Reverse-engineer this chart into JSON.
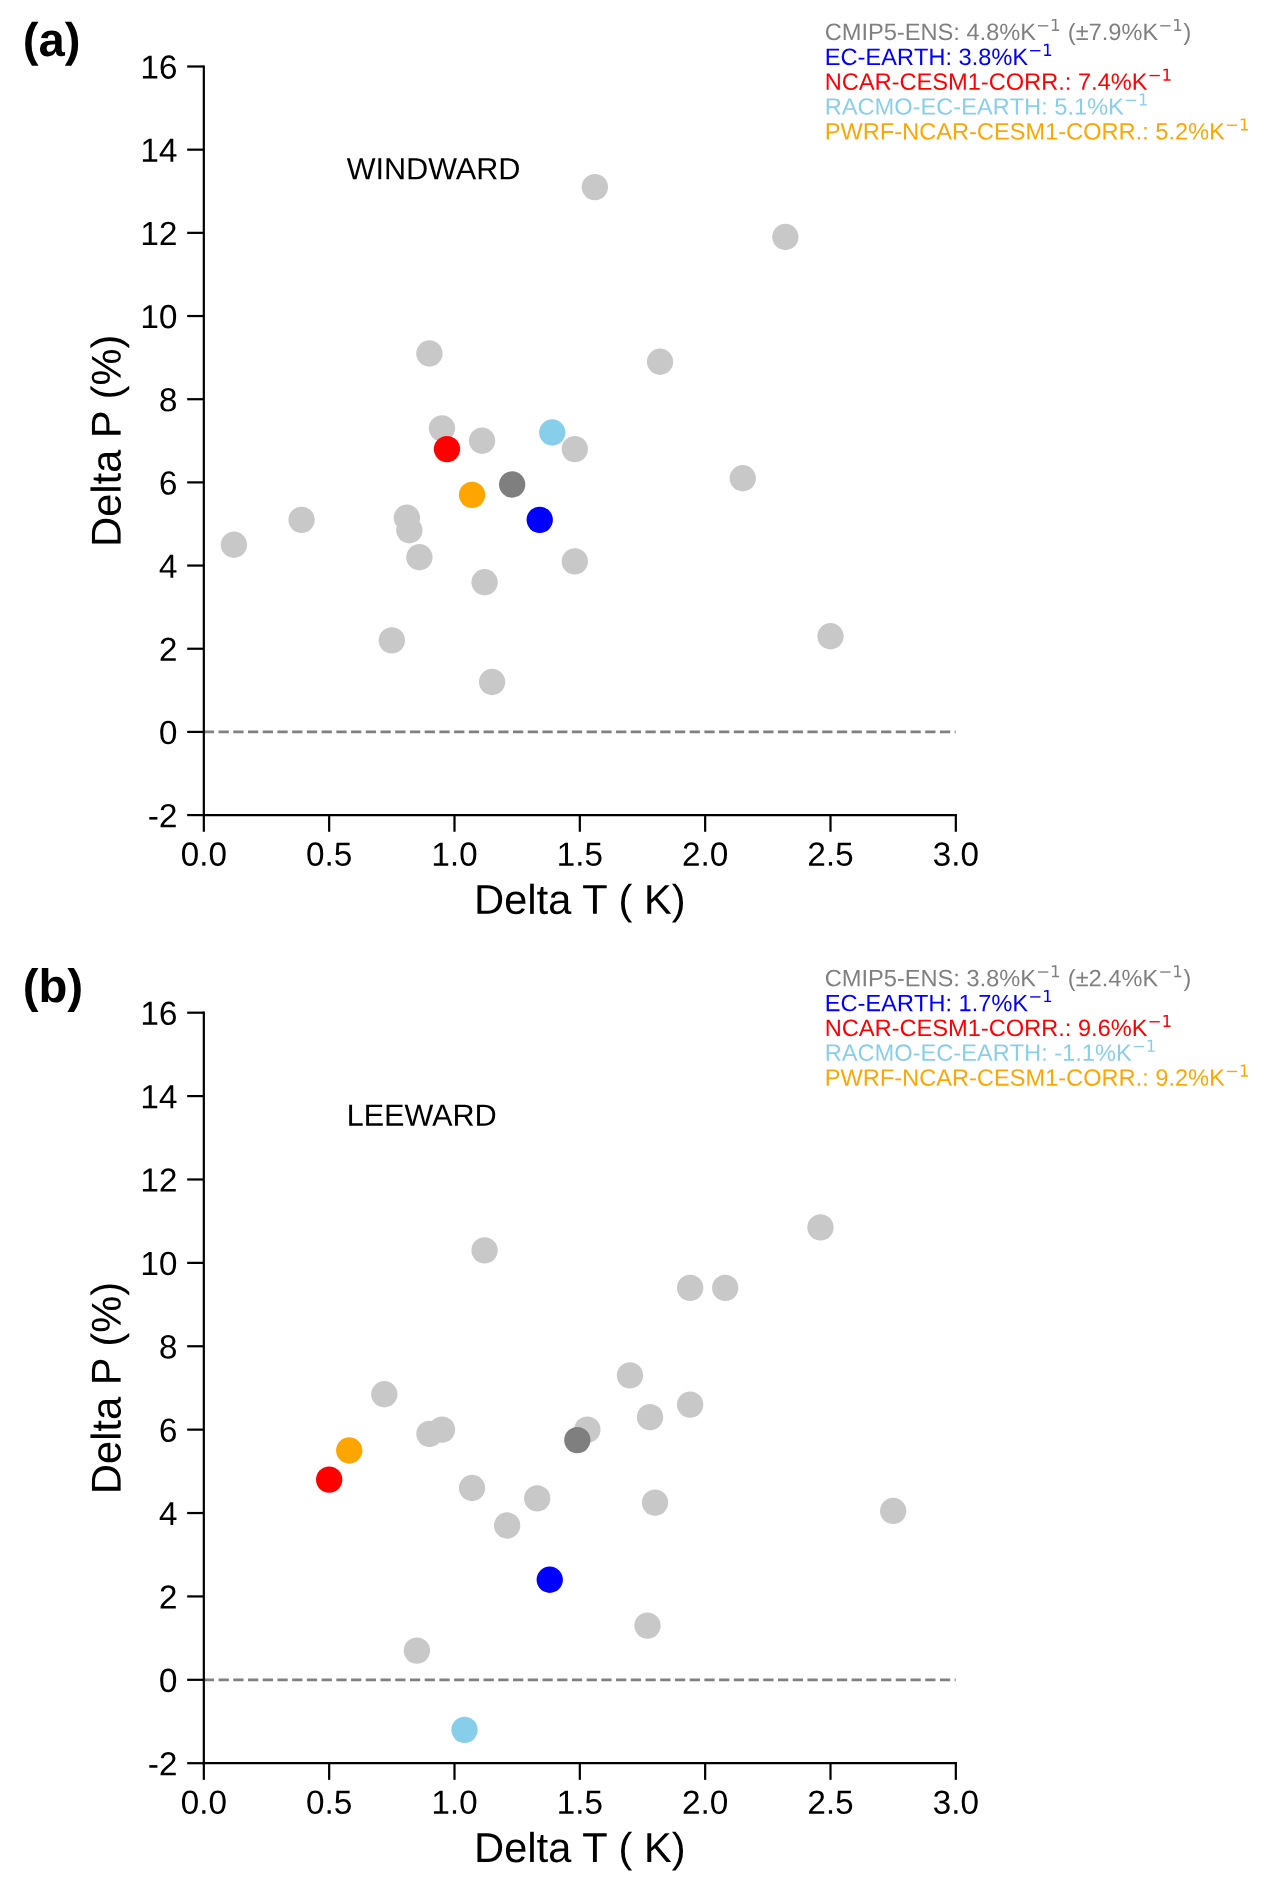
{
  "chart_data": [
    {
      "type": "scatter",
      "title": "(a)",
      "xlabel": "Delta T ( K)",
      "ylabel": "Delta P (%)",
      "annotations": [
        "WINDWARD"
      ],
      "xlim": [
        0,
        3
      ],
      "xticks": [
        {
          "value": 0,
          "label": "0.0"
        },
        {
          "value": 0.5,
          "label": "0.5"
        },
        {
          "value": 1,
          "label": "1.0"
        },
        {
          "value": 1.5,
          "label": "1.5"
        },
        {
          "value": 2,
          "label": "2.0"
        },
        {
          "value": 2.5,
          "label": "2.5"
        },
        {
          "value": 3,
          "label": "3.0"
        }
      ],
      "ylim": [
        -2,
        16
      ],
      "yticks": [
        -2,
        0,
        2,
        4,
        6,
        8,
        10,
        12,
        14,
        16
      ],
      "ref_lines": [
        {
          "axis": "y",
          "value": 0,
          "color": "#808080",
          "line_style": "dashed"
        }
      ],
      "grid": false,
      "legend": "top right",
      "marker": "circle",
      "series": [
        {
          "color": "#c8c8c8",
          "x": [
            0.12,
            0.39,
            0.81,
            0.82,
            0.86,
            0.75,
            0.9,
            0.95,
            1.11,
            1.12,
            1.15,
            1.48,
            1.48,
            1.56,
            1.82,
            2.15,
            2.32,
            2.5
          ],
          "values": [
            4.5,
            5.1,
            5.15,
            4.85,
            4.2,
            2.2,
            9.1,
            7.3,
            7.0,
            3.6,
            1.2,
            6.8,
            4.1,
            13.1,
            8.9,
            6.1,
            11.9,
            2.3
          ]
        },
        {
          "name": "CMIP5-ENS: 4.8%K$^{−1}$ (±7.9%K$^{−1}$)",
          "color": "#7f7f7f",
          "x": [
            1.23
          ],
          "values": [
            5.95
          ]
        },
        {
          "name": "EC-EARTH: 3.8%K$^{−1}$",
          "color": "#0000ff",
          "x": [
            1.34
          ],
          "values": [
            5.1
          ]
        },
        {
          "name": "NCAR-CESM1-CORR.: 7.4%K$^{−1}$",
          "color": "#ff0000",
          "x": [
            0.97
          ],
          "values": [
            6.8
          ]
        },
        {
          "name": "RACMO-EC-EARTH: 5.1%K$^{−1}$",
          "color": "#87ceeb",
          "x": [
            1.39
          ],
          "values": [
            7.2
          ]
        },
        {
          "name": "PWRF-NCAR-CESM1-CORR.: 5.2%K$^{−1}$",
          "color": "#ffa500",
          "x": [
            1.07
          ],
          "values": [
            5.7
          ]
        }
      ]
    },
    {
      "type": "scatter",
      "title": "(b)",
      "xlabel": "Delta T ( K)",
      "ylabel": "Delta P (%)",
      "annotations": [
        "LEEWARD"
      ],
      "xlim": [
        0,
        3
      ],
      "xticks": [
        {
          "value": 0,
          "label": "0.0"
        },
        {
          "value": 0.5,
          "label": "0.5"
        },
        {
          "value": 1,
          "label": "1.0"
        },
        {
          "value": 1.5,
          "label": "1.5"
        },
        {
          "value": 2,
          "label": "2.0"
        },
        {
          "value": 2.5,
          "label": "2.5"
        },
        {
          "value": 3,
          "label": "3.0"
        }
      ],
      "ylim": [
        -2,
        16
      ],
      "yticks": [
        -2,
        0,
        2,
        4,
        6,
        8,
        10,
        12,
        14,
        16
      ],
      "ref_lines": [
        {
          "axis": "y",
          "value": 0,
          "color": "#808080",
          "line_style": "dashed"
        }
      ],
      "grid": false,
      "legend": "top right",
      "marker": "circle",
      "series": [
        {
          "color": "#c8c8c8",
          "x": [
            0.72,
            0.9,
            0.95,
            1.12,
            1.07,
            1.21,
            1.33,
            0.85,
            1.53,
            1.7,
            1.78,
            1.8,
            1.77,
            1.94,
            1.94,
            2.08,
            2.46,
            2.75
          ],
          "values": [
            6.85,
            5.9,
            6.0,
            10.3,
            4.6,
            3.7,
            4.35,
            0.7,
            6.0,
            7.3,
            6.3,
            4.25,
            1.3,
            6.6,
            9.4,
            9.4,
            10.85,
            4.05
          ]
        },
        {
          "name": "CMIP5-ENS: 3.8%K$^{−1}$ (±2.4%K$^{−1}$)",
          "color": "#7f7f7f",
          "x": [
            1.49
          ],
          "values": [
            5.75
          ]
        },
        {
          "name": "EC-EARTH: 1.7%K$^{−1}$",
          "color": "#0000ff",
          "x": [
            1.38
          ],
          "values": [
            2.4
          ]
        },
        {
          "name": "NCAR-CESM1-CORR.: 9.6%K$^{−1}$",
          "color": "#ff0000",
          "x": [
            0.5
          ],
          "values": [
            4.8
          ]
        },
        {
          "name": "RACMO-EC-EARTH: -1.1%K$^{−1}$",
          "color": "#87ceeb",
          "x": [
            1.04
          ],
          "values": [
            -1.2
          ]
        },
        {
          "name": "PWRF-NCAR-CESM1-CORR.: 9.2%K$^{−1}$",
          "color": "#ffa500",
          "x": [
            0.58
          ],
          "values": [
            5.5
          ]
        }
      ]
    }
  ]
}
